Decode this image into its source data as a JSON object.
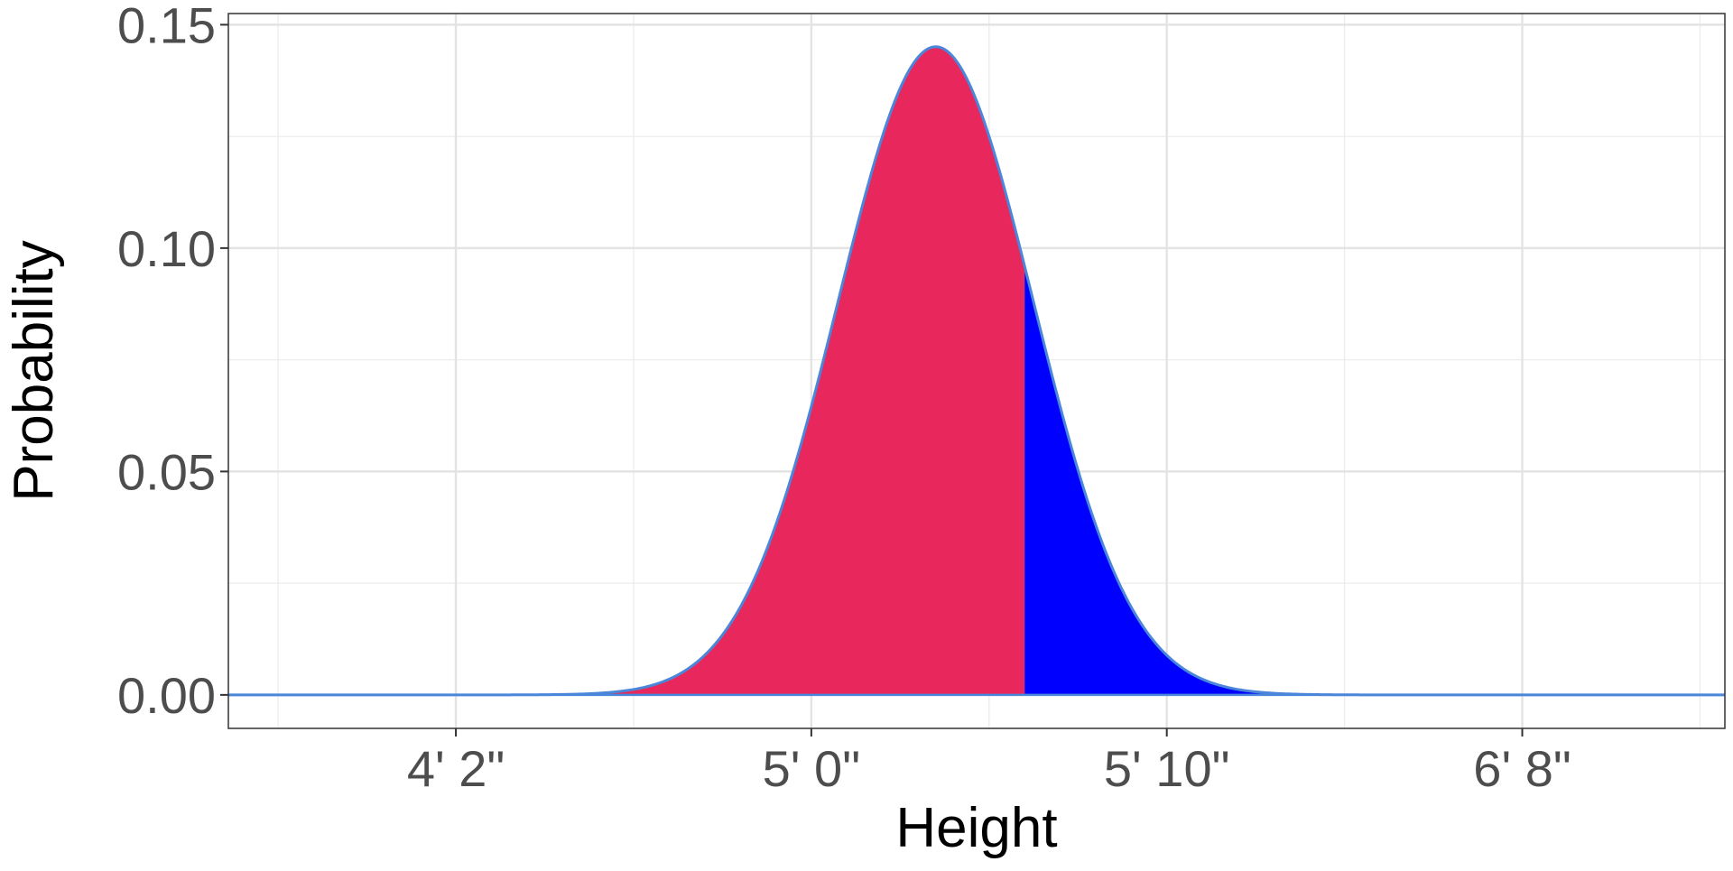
{
  "chart_data": {
    "type": "area",
    "title": "",
    "xlabel": "Height",
    "ylabel": "Probability",
    "x_unit": "inches",
    "xlim": [
      43.6,
      85.7
    ],
    "ylim": [
      -0.0075,
      0.1525
    ],
    "x_ticks": [
      {
        "value": 50,
        "label": "4' 2\""
      },
      {
        "value": 60,
        "label": "5' 0\""
      },
      {
        "value": 70,
        "label": "5' 10\""
      },
      {
        "value": 80,
        "label": "6' 8\""
      }
    ],
    "y_ticks": [
      {
        "value": 0.0,
        "label": "0.00"
      },
      {
        "value": 0.05,
        "label": "0.05"
      },
      {
        "value": 0.1,
        "label": "0.10"
      },
      {
        "value": 0.15,
        "label": "0.15"
      }
    ],
    "grid": true,
    "distribution": {
      "kind": "normal",
      "mean": 63.5,
      "sd": 2.75
    },
    "series": [
      {
        "from": 43.6,
        "to": 66.0,
        "color": "#E8275C"
      },
      {
        "from": 66.0,
        "to": 85.7,
        "color": "#0000FF"
      }
    ],
    "curve_color": "#4A86D9",
    "peak": {
      "x": 63.5,
      "y": 0.145
    }
  }
}
